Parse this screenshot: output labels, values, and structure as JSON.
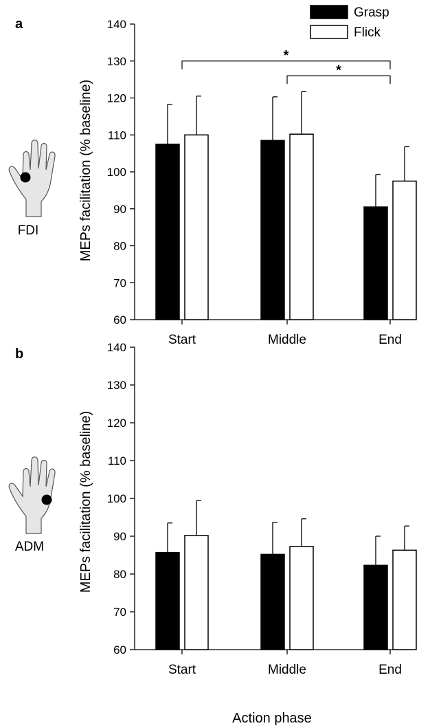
{
  "legend": {
    "items": [
      {
        "label": "Grasp",
        "color": "#000000"
      },
      {
        "label": "Flick",
        "color": "#ffffff"
      }
    ]
  },
  "chart_data": [
    {
      "panel": "a",
      "type": "bar",
      "muscle_label": "FDI",
      "categories": [
        "Start",
        "Middle",
        "End"
      ],
      "series": [
        {
          "name": "Grasp",
          "values": [
            107.5,
            108.5,
            90.5
          ],
          "errors": [
            10.8,
            11.8,
            8.8
          ],
          "color": "#000000"
        },
        {
          "name": "Flick",
          "values": [
            110,
            110.2,
            97.5
          ],
          "errors": [
            10.5,
            11.5,
            9.3
          ],
          "color": "#ffffff"
        }
      ],
      "ylabel": "MEPs facilitation (% baseline)",
      "ylim": [
        60,
        140
      ],
      "yticks": [
        60,
        70,
        80,
        90,
        100,
        110,
        120,
        130,
        140
      ],
      "annotations": [
        {
          "text": "*",
          "from": "Start",
          "to": "End",
          "at_y": 130
        },
        {
          "text": "*",
          "from": "Middle",
          "to": "End",
          "at_y": 126
        }
      ]
    },
    {
      "panel": "b",
      "type": "bar",
      "muscle_label": "ADM",
      "categories": [
        "Start",
        "Middle",
        "End"
      ],
      "series": [
        {
          "name": "Grasp",
          "values": [
            85.7,
            85.2,
            82.3
          ],
          "errors": [
            7.8,
            8.5,
            7.7
          ],
          "color": "#000000"
        },
        {
          "name": "Flick",
          "values": [
            90.2,
            87.3,
            86.3
          ],
          "errors": [
            9.2,
            7.3,
            6.4
          ],
          "color": "#ffffff"
        }
      ],
      "ylabel": "MEPs facilitation (% baseline)",
      "xlabel": "Action phase",
      "ylim": [
        60,
        140
      ],
      "yticks": [
        60,
        70,
        80,
        90,
        100,
        110,
        120,
        130,
        140
      ],
      "annotations": []
    }
  ]
}
